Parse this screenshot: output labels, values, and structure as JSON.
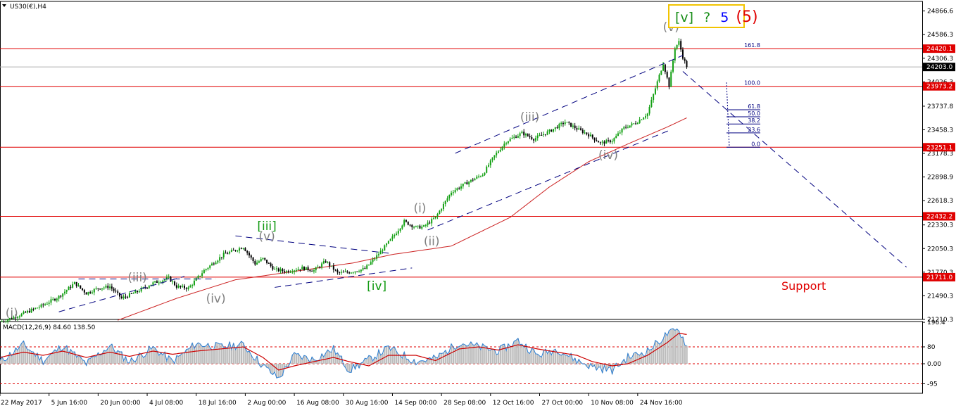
{
  "symbol": "US30(€),H4",
  "title_box": {
    "part1": "[v]",
    "part2": "?",
    "part3": "5",
    "part4": "(5)",
    "color1": "#1a8f1a",
    "color2": "#1a8f1a",
    "color3": "#0000ff",
    "color4": "#e00000",
    "border": "#f2c400"
  },
  "support_label": "Support",
  "colors": {
    "bull": "#12a012",
    "bear": "#000000",
    "resistance": "#e00000",
    "ma": "#cc2222",
    "trend": "#00007f",
    "fibo": "#000080",
    "macd_line": "#2a7fd4",
    "macd_signal": "#cc0000",
    "macd_hist": "#bdbdbd",
    "tag_red": "#e00000",
    "tag_black": "#000000"
  },
  "chart_data": [
    {
      "type": "candlestick",
      "title": "US30(€),H4",
      "x_ticks": [
        "22 May 2017",
        "5 Jun 16:00",
        "20 Jun 00:00",
        "4 Jul 08:00",
        "18 Jul 16:00",
        "2 Aug 00:00",
        "16 Aug 08:00",
        "30 Aug 16:00",
        "14 Sep 00:00",
        "28 Sep 08:00",
        "12 Oct 16:00",
        "27 Oct 00:00",
        "10 Nov 08:00",
        "24 Nov 16:00"
      ],
      "y_ticks": [
        24866.6,
        24586.3,
        24306.3,
        24026.3,
        23737.8,
        23458.3,
        23178.3,
        22898.9,
        22618.3,
        22330.3,
        22050.3,
        21770.3,
        21490.3,
        21210.3
      ],
      "ylim": [
        21210,
        24980
      ],
      "last_price": 24203.0,
      "anchors": [
        {
          "t": 0,
          "p": 21180
        },
        {
          "t": 10,
          "p": 21260
        },
        {
          "t": 22,
          "p": 21380
        },
        {
          "t": 30,
          "p": 21480
        },
        {
          "t": 38,
          "p": 21640
        },
        {
          "t": 44,
          "p": 21520
        },
        {
          "t": 50,
          "p": 21580
        },
        {
          "t": 56,
          "p": 21600
        },
        {
          "t": 62,
          "p": 21460
        },
        {
          "t": 70,
          "p": 21540
        },
        {
          "t": 78,
          "p": 21640
        },
        {
          "t": 86,
          "p": 21700
        },
        {
          "t": 90,
          "p": 21600
        },
        {
          "t": 96,
          "p": 21580
        },
        {
          "t": 104,
          "p": 21790
        },
        {
          "t": 114,
          "p": 21980
        },
        {
          "t": 124,
          "p": 22070
        },
        {
          "t": 130,
          "p": 21870
        },
        {
          "t": 134,
          "p": 21930
        },
        {
          "t": 140,
          "p": 21800
        },
        {
          "t": 146,
          "p": 21780
        },
        {
          "t": 154,
          "p": 21820
        },
        {
          "t": 160,
          "p": 21790
        },
        {
          "t": 166,
          "p": 21900
        },
        {
          "t": 172,
          "p": 21760
        },
        {
          "t": 178,
          "p": 21770
        },
        {
          "t": 186,
          "p": 21810
        },
        {
          "t": 192,
          "p": 21960
        },
        {
          "t": 200,
          "p": 22180
        },
        {
          "t": 206,
          "p": 22370
        },
        {
          "t": 212,
          "p": 22300
        },
        {
          "t": 216,
          "p": 22310
        },
        {
          "t": 222,
          "p": 22420
        },
        {
          "t": 230,
          "p": 22720
        },
        {
          "t": 238,
          "p": 22830
        },
        {
          "t": 246,
          "p": 22930
        },
        {
          "t": 252,
          "p": 23150
        },
        {
          "t": 258,
          "p": 23320
        },
        {
          "t": 266,
          "p": 23420
        },
        {
          "t": 272,
          "p": 23350
        },
        {
          "t": 280,
          "p": 23440
        },
        {
          "t": 288,
          "p": 23550
        },
        {
          "t": 294,
          "p": 23470
        },
        {
          "t": 300,
          "p": 23400
        },
        {
          "t": 306,
          "p": 23300
        },
        {
          "t": 312,
          "p": 23330
        },
        {
          "t": 318,
          "p": 23480
        },
        {
          "t": 324,
          "p": 23540
        },
        {
          "t": 330,
          "p": 23650
        },
        {
          "t": 334,
          "p": 23950
        },
        {
          "t": 338,
          "p": 24250
        },
        {
          "t": 341,
          "p": 23980
        },
        {
          "t": 344,
          "p": 24430
        },
        {
          "t": 346,
          "p": 24500
        },
        {
          "t": 348,
          "p": 24320
        },
        {
          "t": 350,
          "p": 24203
        }
      ],
      "moving_average": [
        {
          "t": 60,
          "p": 21200
        },
        {
          "t": 90,
          "p": 21460
        },
        {
          "t": 120,
          "p": 21680
        },
        {
          "t": 150,
          "p": 21780
        },
        {
          "t": 180,
          "p": 21880
        },
        {
          "t": 200,
          "p": 21980
        },
        {
          "t": 230,
          "p": 22080
        },
        {
          "t": 260,
          "p": 22420
        },
        {
          "t": 280,
          "p": 22780
        },
        {
          "t": 300,
          "p": 23080
        },
        {
          "t": 320,
          "p": 23290
        },
        {
          "t": 340,
          "p": 23490
        },
        {
          "t": 350,
          "p": 23600
        }
      ],
      "horizontal_levels": [
        {
          "price": 24420.1,
          "label": "24420.1",
          "kind": "red"
        },
        {
          "price": 23973.2,
          "label": "23973.2",
          "kind": "red"
        },
        {
          "price": 23251.1,
          "label": "23251.1",
          "kind": "red"
        },
        {
          "price": 22432.2,
          "label": "22432.2",
          "kind": "red"
        },
        {
          "price": 21711.0,
          "label": "21711.0",
          "kind": "red"
        },
        {
          "price": 24203.0,
          "label": "24203.0",
          "kind": "gray"
        }
      ],
      "fibonacci": [
        {
          "ratio": "161.8",
          "price": 24420.1
        },
        {
          "ratio": "100.0",
          "price": 23973.2
        },
        {
          "ratio": "61.8",
          "price": 23696
        },
        {
          "ratio": "50.0",
          "price": 23612
        },
        {
          "ratio": "38.2",
          "price": 23527
        },
        {
          "ratio": "23.6",
          "price": 23421
        },
        {
          "ratio": "0.0",
          "price": 23251.1
        }
      ],
      "trend_lines": [
        {
          "t1": 30,
          "p1": 21300,
          "t2": 94,
          "p2": 21720
        },
        {
          "t1": 40,
          "p1": 21690,
          "t2": 110,
          "p2": 21690
        },
        {
          "t1": 120,
          "p1": 22200,
          "t2": 200,
          "p2": 21990
        },
        {
          "t1": 140,
          "p1": 21590,
          "t2": 210,
          "p2": 21820
        },
        {
          "t1": 218,
          "p1": 22270,
          "t2": 342,
          "p2": 23460
        },
        {
          "t1": 232,
          "p1": 23180,
          "t2": 348,
          "p2": 24340
        },
        {
          "t1": 348,
          "p1": 24150,
          "t2": 462,
          "p2": 21830
        }
      ],
      "wave_labels": [
        {
          "text": "(i)",
          "t": 6,
          "p": 21240,
          "color": "gray"
        },
        {
          "text": "(iii)",
          "t": 70,
          "p": 21660,
          "color": "gray"
        },
        {
          "text": "(iv)",
          "t": 110,
          "p": 21410,
          "color": "gray"
        },
        {
          "text": "[iii]",
          "t": 136,
          "p": 22270,
          "color": "green"
        },
        {
          "text": "(v)",
          "t": 136,
          "p": 22150,
          "color": "gray"
        },
        {
          "text": "[iv]",
          "t": 192,
          "p": 21560,
          "color": "green"
        },
        {
          "text": "(i)",
          "t": 214,
          "p": 22480,
          "color": "gray"
        },
        {
          "text": "(ii)",
          "t": 220,
          "p": 22090,
          "color": "gray"
        },
        {
          "text": "(iii)",
          "t": 270,
          "p": 23560,
          "color": "gray"
        },
        {
          "text": "(iv)",
          "t": 310,
          "p": 23110,
          "color": "gray"
        },
        {
          "text": "(v)",
          "t": 342,
          "p": 24630,
          "color": "gray"
        }
      ]
    },
    {
      "type": "macd",
      "title": "MACD(12,26,9) 84.60 138.50",
      "y_ticks": [
        196.4,
        80,
        0.0,
        -95
      ],
      "ylim": [
        -140,
        200
      ],
      "dotted_levels": [
        80,
        0,
        -95
      ],
      "anchors": [
        {
          "t": 0,
          "m": 10,
          "s": 30
        },
        {
          "t": 12,
          "m": 90,
          "s": 55
        },
        {
          "t": 22,
          "m": 15,
          "s": 40
        },
        {
          "t": 32,
          "m": 85,
          "s": 60
        },
        {
          "t": 44,
          "m": 0,
          "s": 30
        },
        {
          "t": 56,
          "m": 85,
          "s": 55
        },
        {
          "t": 66,
          "m": 10,
          "s": 35
        },
        {
          "t": 78,
          "m": 75,
          "s": 60
        },
        {
          "t": 88,
          "m": 10,
          "s": 45
        },
        {
          "t": 100,
          "m": 95,
          "s": 60
        },
        {
          "t": 112,
          "m": 80,
          "s": 70
        },
        {
          "t": 124,
          "m": 90,
          "s": 80
        },
        {
          "t": 134,
          "m": -10,
          "s": 30
        },
        {
          "t": 142,
          "m": -70,
          "s": -30
        },
        {
          "t": 150,
          "m": 40,
          "s": -10
        },
        {
          "t": 160,
          "m": 20,
          "s": 10
        },
        {
          "t": 170,
          "m": 70,
          "s": 30
        },
        {
          "t": 178,
          "m": -30,
          "s": 10
        },
        {
          "t": 188,
          "m": 20,
          "s": -10
        },
        {
          "t": 198,
          "m": 75,
          "s": 40
        },
        {
          "t": 212,
          "m": 10,
          "s": 40
        },
        {
          "t": 222,
          "m": 25,
          "s": 15
        },
        {
          "t": 234,
          "m": 100,
          "s": 70
        },
        {
          "t": 244,
          "m": 80,
          "s": 80
        },
        {
          "t": 254,
          "m": 60,
          "s": 65
        },
        {
          "t": 264,
          "m": 110,
          "s": 90
        },
        {
          "t": 274,
          "m": 40,
          "s": 70
        },
        {
          "t": 284,
          "m": 70,
          "s": 55
        },
        {
          "t": 294,
          "m": 15,
          "s": 40
        },
        {
          "t": 302,
          "m": -15,
          "s": 10
        },
        {
          "t": 312,
          "m": -30,
          "s": -10
        },
        {
          "t": 320,
          "m": 30,
          "s": 0
        },
        {
          "t": 330,
          "m": 60,
          "s": 40
        },
        {
          "t": 340,
          "m": 140,
          "s": 100
        },
        {
          "t": 346,
          "m": 160,
          "s": 145
        },
        {
          "t": 350,
          "m": 84.6,
          "s": 138.5
        }
      ]
    }
  ]
}
